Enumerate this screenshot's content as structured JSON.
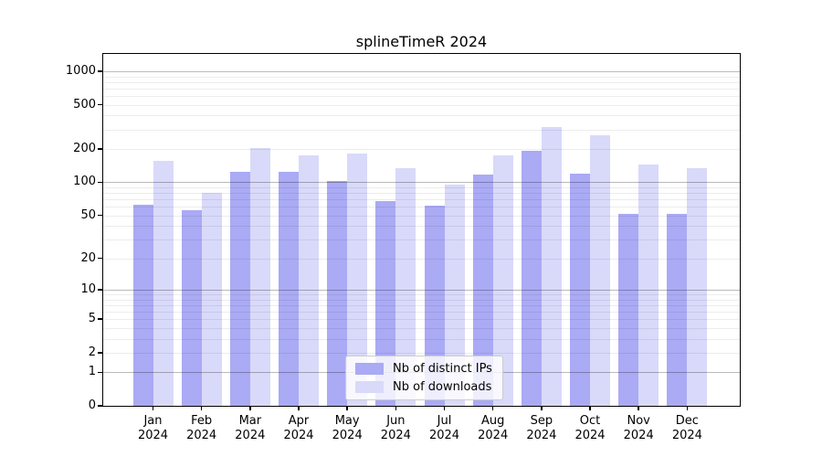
{
  "chart_data": {
    "type": "bar",
    "title": "splineTimeR 2024",
    "categories": [
      "Jan 2024",
      "Feb 2024",
      "Mar 2024",
      "Apr 2024",
      "May 2024",
      "Jun 2024",
      "Jul 2024",
      "Aug 2024",
      "Sep 2024",
      "Oct 2024",
      "Nov 2024",
      "Dec 2024"
    ],
    "series": [
      {
        "name": "Nb of distinct IPs",
        "color": "#aaaaf5",
        "values": [
          62,
          56,
          124,
          125,
          102,
          68,
          61,
          118,
          193,
          120,
          52,
          52
        ]
      },
      {
        "name": "Nb of downloads",
        "color": "#d9d9fa",
        "values": [
          156,
          80,
          205,
          175,
          183,
          135,
          95,
          175,
          318,
          267,
          145,
          134
        ]
      }
    ],
    "xlabel": "",
    "ylabel": "",
    "y_scale": "log1p",
    "y_ticks": [
      0,
      1,
      2,
      5,
      10,
      20,
      50,
      100,
      200,
      500,
      1000
    ],
    "y_gridlines_major": [
      1,
      10,
      100,
      1000
    ],
    "y_gridlines_minor": [
      2,
      3,
      4,
      5,
      6,
      7,
      8,
      9,
      20,
      30,
      40,
      50,
      60,
      70,
      80,
      90,
      200,
      300,
      400,
      500,
      600,
      700,
      800,
      900
    ],
    "ylim": [
      0,
      1430
    ],
    "grid": "on",
    "legend_position": "lower center"
  }
}
